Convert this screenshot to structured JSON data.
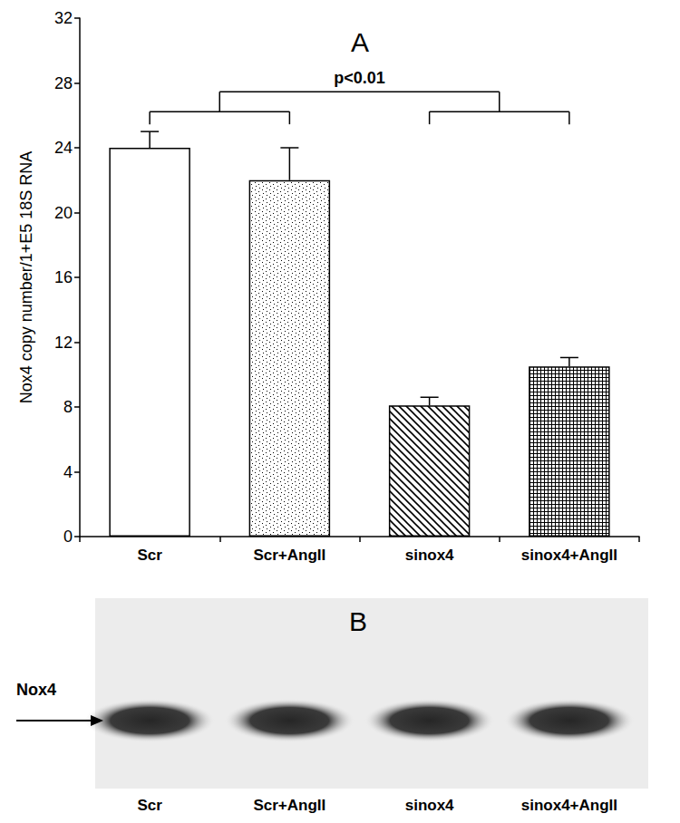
{
  "chart_data": {
    "type": "bar",
    "title": "A",
    "y_label": "Nox4 copy number/1+E5 18S RNA",
    "categories": [
      "Scr",
      "Scr+AngII",
      "sinox4",
      "sinox4+AngII"
    ],
    "values": [
      24,
      22,
      8.1,
      10.5
    ],
    "errors": [
      1,
      2,
      0.5,
      0.55
    ],
    "color": "#000000",
    "ylim": [
      0,
      32
    ],
    "yticks": [
      0,
      4,
      8,
      12,
      16,
      20,
      24,
      28,
      32
    ],
    "grid": false,
    "annotations": [
      {
        "text": "p<0.01",
        "between": [
          [
            "Scr",
            "Scr+AngII"
          ],
          [
            "sinox4",
            "sinox4+AngII"
          ]
        ]
      }
    ]
  },
  "blot": {
    "title": "B",
    "band_label": "Nox4",
    "lanes": [
      "Scr",
      "Scr+AngII",
      "sinox4",
      "sinox4+AngII"
    ]
  }
}
